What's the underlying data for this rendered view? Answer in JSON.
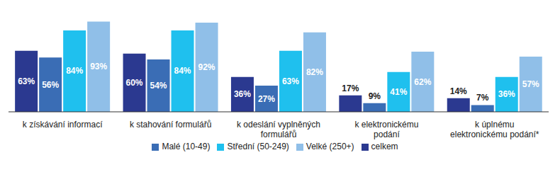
{
  "chart_data": {
    "type": "bar",
    "categories": [
      "k získávání informací",
      "k stahování formulářů",
      "k odeslání vyplněných formulářů",
      "k elektronickému podání",
      "k úplnému elektronickému podání*"
    ],
    "series": [
      {
        "name": "celkem",
        "color": "#2b3990",
        "values": [
          63,
          60,
          36,
          17,
          14
        ],
        "value_labels": [
          "63%",
          "60%",
          "36%",
          "17%",
          "14%"
        ]
      },
      {
        "name": "Malé (10-49)",
        "color": "#3a6db5",
        "values": [
          56,
          54,
          27,
          9,
          7
        ],
        "value_labels": [
          "56%",
          "54%",
          "27%",
          "9%",
          "7%"
        ]
      },
      {
        "name": "Střední (50-249)",
        "color": "#1fc0ee",
        "values": [
          84,
          84,
          63,
          41,
          36
        ],
        "value_labels": [
          "84%",
          "84%",
          "63%",
          "41%",
          "36%"
        ]
      },
      {
        "name": "Velké (250+)",
        "color": "#90bfe8",
        "values": [
          93,
          92,
          82,
          62,
          57
        ],
        "value_labels": [
          "93%",
          "92%",
          "82%",
          "62%",
          "57%"
        ]
      }
    ],
    "ylim": [
      0,
      100
    ],
    "data_labels": true,
    "tick_labels": "x",
    "legend": "bottom"
  }
}
